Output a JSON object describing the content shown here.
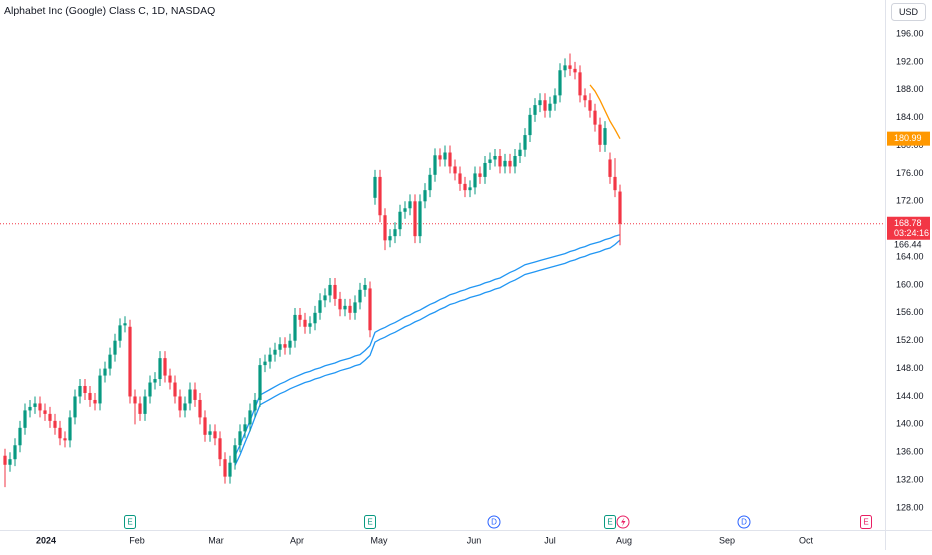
{
  "chart_data": {
    "type": "candlestick",
    "title": "Alphabet Inc (Google) Class C, 1D, NASDAQ",
    "currency": "USD",
    "countdown": "03:24:16",
    "up_color": "#089981",
    "down_color": "#f23645",
    "open": [
      135.5,
      134.2,
      135,
      137,
      139.5,
      142,
      142.5,
      143,
      142,
      141.5,
      140.5,
      139.5,
      138,
      137.7,
      141,
      144,
      145.5,
      144.5,
      143.5,
      143,
      147,
      148,
      150,
      152,
      154.2,
      154,
      144,
      143,
      141.5,
      144,
      146,
      146.5,
      149.5,
      147,
      146,
      144,
      142,
      143,
      145,
      143.5,
      141,
      138.5,
      139,
      138,
      135,
      132.5,
      134.5,
      137,
      139,
      140,
      142,
      143.5,
      148.5,
      149,
      150,
      150.7,
      151.5,
      151,
      152,
      155.7,
      155,
      154,
      154.5,
      156,
      157.8,
      158.5,
      160,
      158,
      156.5,
      157,
      156,
      157.5,
      159.3,
      159.5,
      172.5,
      175.5,
      170,
      166.4,
      167,
      168,
      170.5,
      171,
      172,
      167,
      172,
      173.6,
      175.8,
      178.6,
      178,
      179,
      177,
      176,
      174.5,
      173.6,
      174,
      176,
      175.5,
      177.5,
      178,
      178.5,
      177,
      177.8,
      177,
      178.5,
      179.4,
      181.5,
      184.4,
      185.8,
      186.5,
      185,
      186,
      187.2,
      190.8,
      191.5,
      191,
      190.5,
      187.2,
      186.5,
      185,
      183,
      180.1,
      178,
      175.5,
      173.4
    ],
    "high": [
      136.5,
      136,
      138,
      140.5,
      143,
      143.5,
      144,
      144,
      143,
      142.5,
      141.5,
      140.5,
      139,
      142,
      145,
      146.5,
      146.5,
      145.5,
      144.5,
      148,
      149,
      151,
      153,
      155.2,
      155.5,
      155,
      145,
      144,
      145,
      147,
      147.5,
      150.5,
      150.5,
      148,
      147,
      145,
      144,
      146,
      146,
      144.5,
      142,
      140,
      140,
      139,
      136,
      135.5,
      138,
      140,
      141,
      143,
      144.5,
      149.5,
      150,
      151,
      151.7,
      152.5,
      152.5,
      153,
      156.7,
      156.7,
      156,
      155.5,
      157,
      158.8,
      159.5,
      161,
      161,
      159,
      158,
      158,
      158.5,
      160.3,
      161,
      160.5,
      176.5,
      176.5,
      171,
      168,
      169,
      171.5,
      172,
      173,
      173,
      173,
      174.6,
      176.8,
      179.6,
      179.6,
      180,
      180,
      178,
      177,
      175.5,
      175,
      177,
      177,
      178.5,
      179,
      179.5,
      179.5,
      178.8,
      178.8,
      179.5,
      180.4,
      182.5,
      185.4,
      186.8,
      187.5,
      187.5,
      187,
      188.2,
      191.8,
      192.5,
      193.2,
      192,
      191.5,
      188.2,
      187.5,
      186,
      184,
      183.5,
      179,
      178.2,
      174.4
    ],
    "low": [
      131,
      133.2,
      134,
      136,
      138.5,
      141,
      141.5,
      141,
      140.5,
      139.5,
      138.5,
      137,
      136.7,
      136.7,
      140,
      143,
      143.5,
      142.5,
      142,
      142,
      146,
      147,
      149,
      151,
      153.2,
      143,
      140,
      140.5,
      140.5,
      143,
      145,
      145.5,
      146,
      145,
      143,
      141,
      141,
      142,
      142.5,
      140,
      137.5,
      137.5,
      137,
      134,
      131.5,
      131.5,
      133.5,
      136,
      138,
      139,
      141,
      142.5,
      147.5,
      148,
      149,
      149.7,
      150,
      150,
      151,
      154,
      153,
      153,
      153.5,
      155,
      156.8,
      157.5,
      157,
      155.5,
      155.5,
      155,
      155,
      156.5,
      158.3,
      152.5,
      171.5,
      169,
      165,
      165.4,
      166,
      167,
      169.5,
      170,
      166,
      166,
      171,
      172.6,
      174.8,
      177,
      177,
      176,
      175,
      173.5,
      172.6,
      172.6,
      173,
      174.5,
      174.5,
      176.5,
      177,
      176,
      176,
      176,
      176,
      177.5,
      178.4,
      180.5,
      183.4,
      184.8,
      184,
      184,
      185,
      186.2,
      189.8,
      190,
      189.5,
      186.2,
      185.5,
      184,
      182,
      179.1,
      179.1,
      174.5,
      172.6,
      165.7
    ],
    "close": [
      134.2,
      135,
      137,
      139.5,
      142,
      142.5,
      143,
      142,
      141.5,
      140.5,
      139.5,
      138,
      137.7,
      141,
      144,
      145.5,
      144.5,
      143.5,
      143,
      147,
      148,
      150,
      152,
      154.2,
      154.5,
      144,
      143,
      141.5,
      144,
      146,
      146.5,
      149.5,
      147,
      146,
      144,
      142,
      143,
      145,
      143.5,
      141,
      138.5,
      139,
      138,
      135,
      132.5,
      134.5,
      137,
      139,
      140,
      142,
      143.5,
      148.5,
      149,
      150,
      150.7,
      151.5,
      151,
      152,
      155.7,
      155,
      154,
      154.5,
      156,
      157.8,
      158.5,
      160,
      158,
      156.5,
      157,
      156,
      157.5,
      159.3,
      160,
      153.5,
      175.5,
      170,
      166.4,
      167,
      168,
      170.5,
      171,
      172,
      167,
      172,
      173.6,
      175.8,
      178.6,
      178,
      179,
      177,
      176,
      174.5,
      173.6,
      174,
      176,
      175.5,
      177.5,
      178,
      178.5,
      177,
      177.8,
      177,
      178.5,
      179.4,
      181.5,
      184.4,
      185.8,
      186.5,
      185,
      186,
      187.2,
      190.8,
      191.5,
      191,
      190.5,
      187.2,
      186.5,
      185,
      183,
      180.1,
      182.5,
      175.5,
      173.6,
      168.78
    ],
    "overlays": [
      {
        "color": "#2196f3",
        "values": [
          null,
          null,
          null,
          null,
          null,
          null,
          null,
          null,
          null,
          null,
          null,
          null,
          null,
          null,
          null,
          null,
          null,
          null,
          null,
          null,
          null,
          null,
          null,
          null,
          null,
          null,
          null,
          null,
          null,
          null,
          null,
          null,
          null,
          null,
          null,
          null,
          null,
          null,
          null,
          null,
          null,
          null,
          null,
          null,
          null,
          null,
          135.5,
          137,
          138.8,
          140.5,
          142.4,
          144.2,
          144.6,
          145,
          145.4,
          145.8,
          146.1,
          146.5,
          146.8,
          147.1,
          147.4,
          147.6,
          147.9,
          148.1,
          148.4,
          148.6,
          148.8,
          149.1,
          149.3,
          149.5,
          149.8,
          150,
          150.6,
          151.3,
          153.2,
          153.6,
          153.9,
          154.3,
          154.6,
          155,
          155.4,
          155.7,
          156.1,
          156.4,
          156.8,
          157.2,
          157.5,
          157.9,
          158.2,
          158.6,
          158.8,
          159.1,
          159.3,
          159.6,
          159.8,
          160,
          160.3,
          160.5,
          160.8,
          161,
          161.4,
          161.8,
          162.1,
          162.5,
          162.9,
          163.1,
          163.3,
          163.5,
          163.7,
          163.9,
          164.1,
          164.3,
          164.5,
          164.8,
          165,
          165.3,
          165.5,
          165.8,
          166,
          166.2,
          166.5,
          166.7,
          167,
          167.2
        ]
      },
      {
        "color": "#2196f3",
        "values": [
          null,
          null,
          null,
          null,
          null,
          null,
          null,
          null,
          null,
          null,
          null,
          null,
          null,
          null,
          null,
          null,
          null,
          null,
          null,
          null,
          null,
          null,
          null,
          null,
          null,
          null,
          null,
          null,
          null,
          null,
          null,
          null,
          null,
          null,
          null,
          null,
          null,
          null,
          null,
          null,
          null,
          null,
          null,
          null,
          null,
          null,
          134.1,
          135.6,
          137.4,
          139.1,
          141,
          142.8,
          143.2,
          143.6,
          144,
          144.4,
          144.7,
          145.1,
          145.4,
          145.7,
          146,
          146.2,
          146.5,
          146.7,
          147,
          147.2,
          147.4,
          147.7,
          147.9,
          148.1,
          148.4,
          148.6,
          149.2,
          149.9,
          151.8,
          152.2,
          152.5,
          152.9,
          153.2,
          153.6,
          154,
          154.3,
          154.7,
          155,
          155.4,
          155.8,
          156.1,
          156.5,
          156.8,
          157.2,
          157.4,
          157.7,
          157.9,
          158.2,
          158.4,
          158.6,
          158.9,
          159.1,
          159.4,
          159.6,
          160,
          160.4,
          160.7,
          161.1,
          161.5,
          161.7,
          161.9,
          162.1,
          162.3,
          162.5,
          162.7,
          162.9,
          163.1,
          163.4,
          163.6,
          163.9,
          164.1,
          164.4,
          164.6,
          164.8,
          165.1,
          165.3,
          165.8,
          166.44
        ]
      },
      {
        "color": "#ff9800",
        "values": [
          null,
          null,
          null,
          null,
          null,
          null,
          null,
          null,
          null,
          null,
          null,
          null,
          null,
          null,
          null,
          null,
          null,
          null,
          null,
          null,
          null,
          null,
          null,
          null,
          null,
          null,
          null,
          null,
          null,
          null,
          null,
          null,
          null,
          null,
          null,
          null,
          null,
          null,
          null,
          null,
          null,
          null,
          null,
          null,
          null,
          null,
          null,
          null,
          null,
          null,
          null,
          null,
          null,
          null,
          null,
          null,
          null,
          null,
          null,
          null,
          null,
          null,
          null,
          null,
          null,
          null,
          null,
          null,
          null,
          null,
          null,
          null,
          null,
          null,
          null,
          null,
          null,
          null,
          null,
          null,
          null,
          null,
          null,
          null,
          null,
          null,
          null,
          null,
          null,
          null,
          null,
          null,
          null,
          null,
          null,
          null,
          null,
          null,
          null,
          null,
          null,
          null,
          null,
          null,
          null,
          null,
          null,
          null,
          null,
          null,
          null,
          null,
          null,
          null,
          null,
          null,
          null,
          188.7,
          187.8,
          186.5,
          185,
          183.5,
          182.3,
          180.99
        ]
      }
    ],
    "xlim": [
      -1,
      176
    ],
    "xticks": [
      {
        "value": 8.2,
        "label": "2024"
      },
      {
        "value": 26.4,
        "label": "Feb"
      },
      {
        "value": 42.2,
        "label": "Mar"
      },
      {
        "value": 58.4,
        "label": "Apr"
      },
      {
        "value": 74.8,
        "label": "May"
      },
      {
        "value": 93.8,
        "label": "Jun"
      },
      {
        "value": 109,
        "label": "Jul"
      },
      {
        "value": 123.8,
        "label": "Aug"
      },
      {
        "value": 144.4,
        "label": "Sep"
      },
      {
        "value": 160.2,
        "label": "Oct"
      }
    ],
    "ylim": [
      125.13,
      200.88
    ],
    "yticks": [
      {
        "value": 128,
        "label": "128.00"
      },
      {
        "value": 132,
        "label": "132.00"
      },
      {
        "value": 136,
        "label": "136.00"
      },
      {
        "value": 140,
        "label": "140.00"
      },
      {
        "value": 144,
        "label": "144.00"
      },
      {
        "value": 148,
        "label": "148.00"
      },
      {
        "value": 152,
        "label": "152.00"
      },
      {
        "value": 156,
        "label": "156.00"
      },
      {
        "value": 160,
        "label": "160.00"
      },
      {
        "value": 164,
        "label": "164.00"
      },
      {
        "value": 168,
        "label": "168.00"
      },
      {
        "value": 172,
        "label": "172.00"
      },
      {
        "value": 176,
        "label": "176.00"
      },
      {
        "value": 180,
        "label": "180.00"
      },
      {
        "value": 184,
        "label": "184.00"
      },
      {
        "value": 188,
        "label": "188.00"
      },
      {
        "value": 192,
        "label": "192.00"
      },
      {
        "value": 196,
        "label": "196.00"
      }
    ],
    "grid": false,
    "events": [
      {
        "label": "E",
        "index": 25,
        "color": "#089981"
      },
      {
        "label": "E",
        "index": 73,
        "color": "#089981"
      },
      {
        "label": "D",
        "index": 97.8,
        "color": "#2962ff"
      },
      {
        "label": "E",
        "index": 121,
        "color": "#089981"
      },
      {
        "label": "D",
        "index": 147.8,
        "color": "#2962ff"
      },
      {
        "label": "E",
        "index": 172.2,
        "color": "#e91e63"
      }
    ]
  }
}
